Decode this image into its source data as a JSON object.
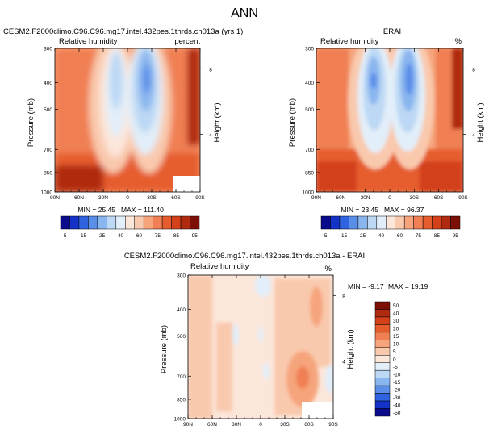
{
  "page": {
    "title": "ANN"
  },
  "chart_data": [
    {
      "type": "heatmap",
      "title": "CESM2.F2000climo.C96.C96.mg17.intel.432pes.1thrds.ch013a (yrs 1)",
      "variable": "Relative humidity",
      "units": "percent",
      "ylabel": "Pressure (mb)",
      "ylabel_right": "Height (km)",
      "x_ticks": [
        "90N",
        "60N",
        "30N",
        "0",
        "30S",
        "60S",
        "90S"
      ],
      "y_ticks": [
        300,
        400,
        500,
        700,
        850,
        1000
      ],
      "y_ticks_right": [
        8,
        4
      ],
      "min": 25.45,
      "max": 111.4,
      "min_label": "MIN = 25.45",
      "max_label": "MAX = 111.40",
      "colorbar_levels": [
        5,
        10,
        15,
        20,
        25,
        30,
        40,
        50,
        60,
        70,
        75,
        80,
        85,
        90,
        95
      ],
      "colorbar_tick_labels": [
        5,
        15,
        25,
        40,
        60,
        75,
        85,
        95
      ]
    },
    {
      "type": "heatmap",
      "title": "ERAI",
      "variable": "Relative humidity",
      "units": "%",
      "ylabel": "Pressure (mb)",
      "ylabel_right": "Height (km)",
      "x_ticks": [
        "90N",
        "60N",
        "30N",
        "0",
        "30S",
        "60S",
        "90S"
      ],
      "y_ticks": [
        300,
        400,
        500,
        700,
        850,
        1000
      ],
      "y_ticks_right": [
        8,
        4
      ],
      "min": 23.45,
      "max": 96.37,
      "min_label": "MIN = 23.45",
      "max_label": "MAX = 96.37",
      "colorbar_levels": [
        5,
        10,
        15,
        20,
        25,
        30,
        40,
        50,
        60,
        70,
        75,
        80,
        85,
        90,
        95
      ],
      "colorbar_tick_labels": [
        5,
        15,
        25,
        40,
        60,
        75,
        85,
        95
      ]
    },
    {
      "type": "heatmap",
      "title": "CESM2.F2000climo.C96.C96.mg17.intel.432pes.1thrds.ch013a - ERAI",
      "variable": "Relative humidity",
      "units": "%",
      "ylabel": "Pressure (mb)",
      "ylabel_right": "Height (km)",
      "x_ticks": [
        "90N",
        "60N",
        "30N",
        "0",
        "30S",
        "60S",
        "90S"
      ],
      "y_ticks": [
        300,
        400,
        500,
        700,
        850,
        1000
      ],
      "y_ticks_right": [
        8,
        4
      ],
      "min": -9.17,
      "max": 19.19,
      "min_label": "MIN = -9.17",
      "max_label": "MAX = 19.19",
      "colorbar_levels": [
        50,
        40,
        30,
        20,
        15,
        10,
        5,
        0,
        -5,
        -10,
        -15,
        -20,
        -30,
        -40,
        -50
      ],
      "colorbar_tick_labels": [
        50,
        40,
        30,
        20,
        15,
        10,
        5,
        0,
        -5,
        -10,
        -15,
        -20,
        -30,
        -40,
        -50
      ]
    }
  ],
  "colors": {
    "abs_palette": [
      "#0a0a8c",
      "#1432c8",
      "#2f63e0",
      "#5a8ee8",
      "#8ab6ef",
      "#bcd8f4",
      "#e2eef9",
      "#fbe6da",
      "#f9c9ad",
      "#f6a47c",
      "#f07f53",
      "#e65d2d",
      "#d3401a",
      "#b02a0f",
      "#7d1006"
    ],
    "diff_palette": [
      "#7d1006",
      "#b02a0f",
      "#d3401a",
      "#e65d2d",
      "#f07f53",
      "#f6a47c",
      "#f9c9ad",
      "#fbe6da",
      "#e2eef9",
      "#bcd8f4",
      "#8ab6ef",
      "#5a8ee8",
      "#2f63e0",
      "#1432c8",
      "#0a0a8c"
    ]
  }
}
